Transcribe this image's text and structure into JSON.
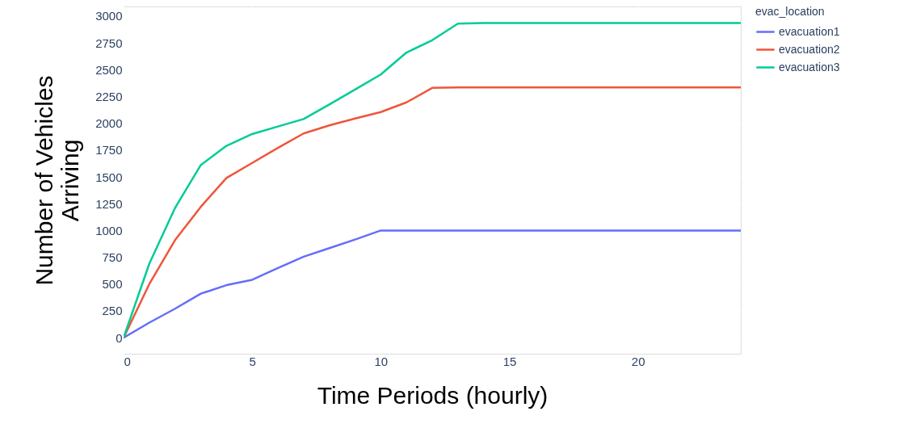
{
  "chart_data": {
    "type": "line",
    "xlabel": "Time Periods (hourly)",
    "ylabel": "Number of Vehicles\nArriving",
    "legend_title": "evac_location",
    "x": [
      0,
      1,
      2,
      3,
      4,
      5,
      6,
      7,
      8,
      9,
      10,
      11,
      12,
      13,
      14,
      15,
      16,
      17,
      18,
      19,
      20,
      21,
      22,
      23,
      24
    ],
    "series": [
      {
        "name": "evacuation1",
        "color": "#636efa",
        "values": [
          0,
          140,
          270,
          410,
          490,
          540,
          650,
          755,
          835,
          915,
          1000,
          1000,
          1000,
          1000,
          1000,
          1000,
          1000,
          1000,
          1000,
          1000,
          1000,
          1000,
          1000,
          1000,
          1000
        ]
      },
      {
        "name": "evacuation2",
        "color": "#ef553b",
        "values": [
          0,
          500,
          910,
          1220,
          1490,
          1630,
          1770,
          1905,
          1980,
          2045,
          2105,
          2195,
          2330,
          2335,
          2335,
          2335,
          2335,
          2335,
          2335,
          2335,
          2335,
          2335,
          2335,
          2335,
          2335
        ]
      },
      {
        "name": "evacuation3",
        "color": "#00cc96",
        "values": [
          0,
          690,
          1210,
          1610,
          1790,
          1900,
          1970,
          2040,
          2175,
          2315,
          2455,
          2660,
          2775,
          2930,
          2935,
          2935,
          2935,
          2935,
          2935,
          2935,
          2935,
          2935,
          2935,
          2935,
          2935
        ]
      }
    ],
    "xlim": [
      0,
      24
    ],
    "xticks": [
      0,
      5,
      10,
      15,
      20
    ],
    "ylim": [
      -150,
      3090
    ],
    "yticks": [
      0,
      250,
      500,
      750,
      1000,
      1250,
      1500,
      1750,
      2000,
      2250,
      2500,
      2750,
      3000
    ],
    "grid": true,
    "legend": "top right",
    "marker": "none",
    "line_style": "solid"
  }
}
